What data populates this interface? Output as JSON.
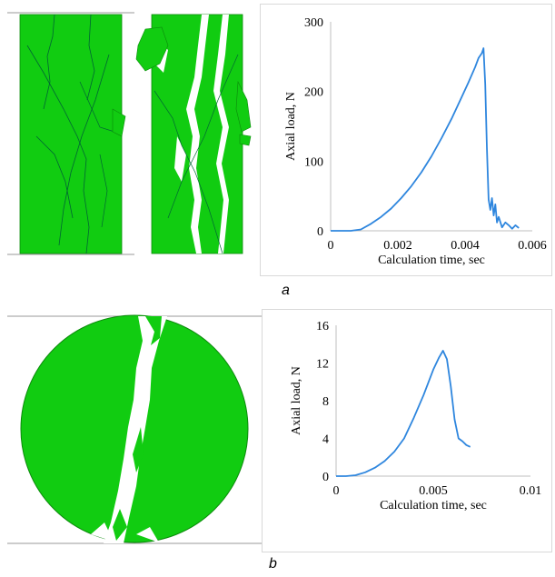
{
  "figure": {
    "caption_a": "a",
    "caption_b": "b",
    "specimen_color": "#11cc11",
    "crack_color": "#ffffff"
  },
  "chart_data": [
    {
      "type": "line",
      "xlabel": "Calculation time, sec",
      "ylabel": "Axial load, N",
      "xlim": [
        0,
        0.006
      ],
      "ylim": [
        0,
        300
      ],
      "xticks": [
        "0",
        "0.002",
        "0.004",
        "0.006"
      ],
      "yticks": [
        "0",
        "100",
        "200",
        "300"
      ],
      "grid": false,
      "color": "#2e86de",
      "series": [
        {
          "x": [
            0,
            0.0003,
            0.0006,
            0.0009,
            0.0012,
            0.0015,
            0.0018,
            0.0021,
            0.0024,
            0.0027,
            0.003,
            0.0033,
            0.0036,
            0.0039,
            0.0041,
            0.0043,
            0.0044,
            0.0045,
            0.00455,
            0.0046,
            0.00465,
            0.0047,
            0.00475,
            0.0048,
            0.00485,
            0.0049,
            0.00495,
            0.005,
            0.0051,
            0.0052,
            0.0053,
            0.0054,
            0.0055,
            0.0056
          ],
          "y": [
            0,
            0,
            0,
            2,
            10,
            20,
            32,
            47,
            64,
            84,
            107,
            133,
            161,
            192,
            213,
            235,
            248,
            255,
            262,
            210,
            120,
            45,
            30,
            47,
            22,
            38,
            12,
            20,
            5,
            12,
            8,
            3,
            8,
            4
          ]
        }
      ]
    },
    {
      "type": "line",
      "xlabel": "Calculation time, sec",
      "ylabel": "Axial load, N",
      "xlim": [
        0,
        0.01
      ],
      "ylim": [
        0,
        16
      ],
      "xticks": [
        "0",
        "0.005",
        "0.01"
      ],
      "yticks": [
        "0",
        "4",
        "8",
        "12",
        "16"
      ],
      "grid": false,
      "color": "#2e86de",
      "series": [
        {
          "x": [
            0,
            0.0005,
            0.001,
            0.0015,
            0.002,
            0.0025,
            0.003,
            0.0035,
            0.004,
            0.0045,
            0.005,
            0.0053,
            0.0055,
            0.0057,
            0.0059,
            0.0061,
            0.0063,
            0.0065,
            0.0067,
            0.0069
          ],
          "y": [
            0,
            0,
            0.1,
            0.4,
            0.9,
            1.6,
            2.6,
            4,
            6.2,
            8.6,
            11.3,
            12.6,
            13.3,
            12.4,
            9.5,
            6,
            4,
            3.7,
            3.3,
            3.1
          ]
        }
      ]
    }
  ]
}
